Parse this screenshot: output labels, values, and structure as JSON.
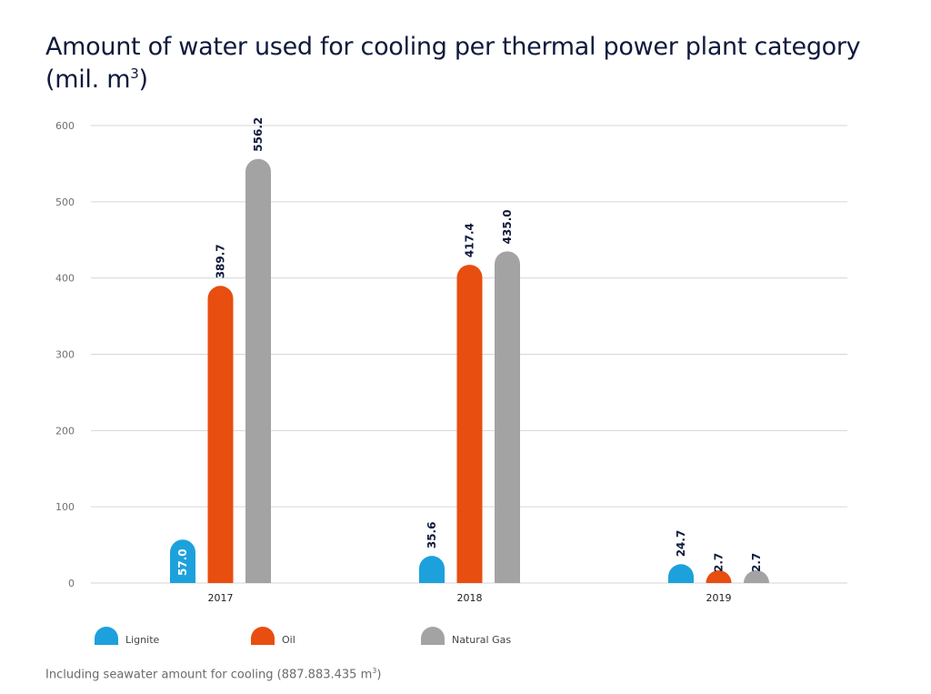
{
  "title": {
    "main": "Amount of water used for cooling per thermal power plant category (mil. m",
    "sup": "3",
    "close": ")"
  },
  "footnote": {
    "main": "Including seawater amount for cooling (887.883.435 m",
    "sup": "3",
    "close": ")"
  },
  "colors": {
    "lignite": "#1da1dc",
    "oil": "#e84e10",
    "natural_gas": "#a3a3a3",
    "title": "#0f1a3c",
    "grid": "#d6d6d6",
    "axis_text": "#707070"
  },
  "chart_data": {
    "type": "bar",
    "categories": [
      "2017",
      "2018",
      "2019"
    ],
    "series": [
      {
        "name": "Lignite",
        "color": "#1da1dc",
        "values": [
          57.0,
          35.6,
          24.7
        ],
        "labels": [
          "57.0",
          "35.6",
          "24.7"
        ]
      },
      {
        "name": "Oil",
        "color": "#e84e10",
        "values": [
          389.7,
          417.4,
          2.7
        ],
        "labels": [
          "389.7",
          "417.4",
          "2.7"
        ]
      },
      {
        "name": "Natural Gas",
        "color": "#a3a3a3",
        "values": [
          556.2,
          435.0,
          2.7
        ],
        "labels": [
          "556.2",
          "435.0",
          "2.7"
        ]
      }
    ],
    "yticks": [
      "0",
      "100",
      "200",
      "300",
      "400",
      "500",
      "600"
    ],
    "ylim": [
      0,
      600
    ],
    "grid": true,
    "legend_position": "bottom"
  }
}
